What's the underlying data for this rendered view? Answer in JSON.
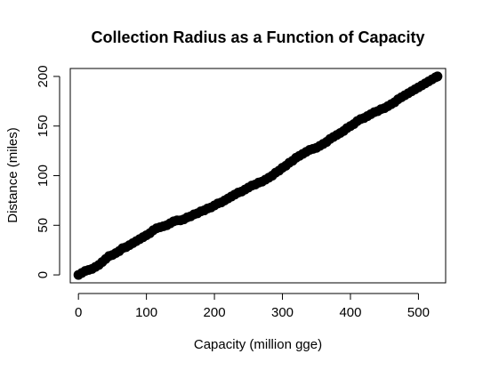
{
  "chart_data": {
    "type": "scatter",
    "title": "Collection Radius as a Function of Capacity",
    "xlabel": "Capacity (million gge)",
    "ylabel": "Distance (miles)",
    "xlim": [
      -12,
      540
    ],
    "ylim": [
      -8,
      208
    ],
    "xticks": [
      0,
      100,
      200,
      300,
      400,
      500
    ],
    "yticks": [
      0,
      50,
      100,
      150,
      200
    ],
    "grid": false,
    "series": [
      {
        "color": "#000000",
        "marker": "filled-circle",
        "x": [
          0,
          5,
          10,
          15,
          20,
          25,
          30,
          35,
          40,
          45,
          50,
          55,
          60,
          65,
          70,
          75,
          80,
          85,
          90,
          95,
          100,
          105,
          110,
          115,
          120,
          125,
          130,
          135,
          140,
          145,
          150,
          155,
          160,
          165,
          170,
          175,
          180,
          185,
          190,
          195,
          200,
          205,
          210,
          215,
          220,
          225,
          230,
          235,
          240,
          245,
          250,
          255,
          260,
          265,
          270,
          275,
          280,
          285,
          290,
          295,
          300,
          305,
          310,
          315,
          320,
          325,
          330,
          335,
          340,
          345,
          350,
          355,
          360,
          365,
          370,
          375,
          380,
          385,
          390,
          395,
          400,
          405,
          410,
          415,
          420,
          425,
          430,
          435,
          440,
          445,
          450,
          455,
          460,
          465,
          470,
          475,
          480,
          485,
          490,
          495,
          500,
          505,
          510,
          515,
          520,
          525,
          528
        ],
        "y": [
          0,
          2,
          4,
          5,
          6,
          8,
          10,
          13,
          16,
          19,
          20,
          22,
          24,
          27,
          28,
          30,
          32,
          34,
          36,
          38,
          40,
          42,
          45,
          47,
          48,
          49,
          50,
          52,
          54,
          55,
          55,
          56,
          58,
          59,
          61,
          62,
          64,
          65,
          67,
          68,
          70,
          72,
          73,
          75,
          77,
          79,
          81,
          83,
          84,
          86,
          88,
          90,
          91,
          93,
          94,
          96,
          98,
          100,
          103,
          105,
          108,
          110,
          113,
          115,
          118,
          120,
          122,
          124,
          126,
          127,
          128,
          130,
          132,
          134,
          137,
          139,
          141,
          143,
          145,
          148,
          150,
          152,
          155,
          157,
          158,
          160,
          162,
          164,
          165,
          167,
          168,
          170,
          172,
          174,
          177,
          179,
          181,
          183,
          185,
          187,
          189,
          191,
          193,
          195,
          197,
          199,
          200
        ]
      }
    ]
  }
}
